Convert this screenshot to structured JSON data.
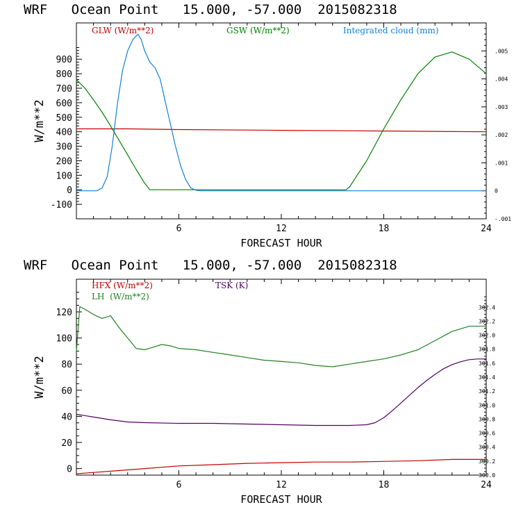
{
  "chart_data": [
    {
      "type": "line",
      "title": "WRF   Ocean Point   15.000, -57.000  2015082318",
      "xlabel": "FORECAST HOUR",
      "ylabel": "W/m**2",
      "xlim": [
        0,
        24
      ],
      "ylim": [
        -200,
        1150
      ],
      "xticks": [
        6,
        12,
        18,
        24
      ],
      "yticks": [
        -100,
        0,
        100,
        200,
        300,
        400,
        500,
        600,
        700,
        800,
        900
      ],
      "y2lim": [
        -0.001,
        0.006
      ],
      "y2ticks": [
        -0.001,
        0,
        0.001,
        0.002,
        0.003,
        0.004,
        0.005
      ],
      "y2ticklabels": [
        "-.001",
        "0",
        ".001",
        ".002",
        ".003",
        ".004",
        ".005"
      ],
      "series": [
        {
          "name": "GLW (W/m**2)",
          "color": "#c00000",
          "axis": "left",
          "x": [
            0,
            3,
            6,
            12,
            18,
            24
          ],
          "y": [
            420,
            420,
            415,
            410,
            405,
            400
          ]
        },
        {
          "name": "GSW (W/m**2)",
          "color": "#008000",
          "axis": "left",
          "x": [
            0,
            0.5,
            1,
            1.5,
            2,
            2.5,
            3,
            3.5,
            4,
            4.3,
            15.8,
            16,
            17,
            18,
            19,
            20,
            21,
            22,
            23,
            24
          ],
          "y": [
            760,
            700,
            620,
            535,
            440,
            340,
            240,
            140,
            45,
            0,
            0,
            20,
            200,
            420,
            620,
            800,
            915,
            950,
            900,
            800
          ]
        },
        {
          "name": "Integrated cloud (mm)",
          "color": "#1080d8",
          "axis": "right",
          "x": [
            0,
            1.2,
            1.5,
            1.8,
            2.1,
            2.4,
            2.7,
            3.0,
            3.3,
            3.6,
            3.8,
            4.0,
            4.3,
            4.6,
            4.9,
            5.2,
            5.5,
            5.8,
            6.1,
            6.4,
            6.7,
            7.0,
            7.3,
            24
          ],
          "y": [
            0,
            0,
            0.0001,
            0.0005,
            0.0016,
            0.0031,
            0.0043,
            0.005,
            0.0054,
            0.0056,
            0.0054,
            0.005,
            0.0046,
            0.0044,
            0.004,
            0.0032,
            0.0024,
            0.0016,
            0.0009,
            0.0004,
            0.0001,
            2e-05,
            0,
            0
          ]
        }
      ]
    },
    {
      "type": "line",
      "title": "WRF   Ocean Point   15.000, -57.000  2015082318",
      "xlabel": "FORECAST HOUR",
      "ylabel": "W/m**2",
      "xlim": [
        0,
        24
      ],
      "ylim": [
        -5,
        145
      ],
      "xticks": [
        6,
        12,
        18,
        24
      ],
      "yticks": [
        0,
        20,
        40,
        60,
        80,
        100,
        120
      ],
      "y2lim": [
        300.0,
        302.8
      ],
      "y2ticks": [
        300.0,
        300.2,
        300.4,
        300.6,
        300.8,
        301.0,
        301.2,
        301.4,
        301.6,
        301.8,
        302.0,
        302.2,
        302.4
      ],
      "y2ticklabels": [
        "300.0",
        "300.2",
        "300.4",
        "300.6",
        "300.8",
        "301.0",
        "301.2",
        "301.4",
        "301.6",
        "301.8",
        "302.0",
        "302.2",
        "302.4"
      ],
      "series": [
        {
          "name": "HFX (W/m**2)",
          "color": "#c00000",
          "axis": "left",
          "x": [
            0,
            1,
            2,
            3,
            4,
            5,
            6,
            8,
            10,
            12,
            14,
            16,
            18,
            20,
            22,
            24
          ],
          "y": [
            -4,
            -3,
            -2,
            -1,
            0,
            1,
            2,
            3,
            4,
            4.5,
            5,
            5,
            5.5,
            6,
            7,
            7
          ]
        },
        {
          "name": "LH  (W/m**2)",
          "color": "#208020",
          "axis": "left",
          "x": [
            0,
            0.2,
            0.5,
            1,
            1.5,
            2,
            2.5,
            3,
            3.5,
            4,
            4.5,
            5,
            5.5,
            6,
            7,
            8,
            9,
            10,
            11,
            12,
            13,
            14,
            15,
            16,
            17,
            18,
            19,
            20,
            21,
            22,
            23,
            24
          ],
          "y": [
            90,
            124,
            122,
            118,
            115,
            117,
            108,
            100,
            92,
            91,
            93,
            95,
            94,
            92,
            91,
            89,
            87,
            85,
            83,
            82,
            81,
            79,
            78,
            80,
            82,
            84,
            87,
            91,
            98,
            105,
            109,
            109
          ]
        },
        {
          "name": "TSK (K)",
          "color": "#500060",
          "axis": "right",
          "x": [
            0,
            1,
            2,
            3,
            4,
            6,
            8,
            10,
            12,
            14,
            15,
            16,
            17,
            17.5,
            18,
            18.5,
            19,
            19.5,
            20,
            20.5,
            21,
            21.5,
            22,
            22.5,
            23,
            23.5,
            24
          ],
          "y": [
            300.87,
            300.83,
            300.79,
            300.76,
            300.75,
            300.74,
            300.74,
            300.73,
            300.72,
            300.71,
            300.71,
            300.71,
            300.72,
            300.75,
            300.82,
            300.92,
            301.03,
            301.14,
            301.25,
            301.35,
            301.44,
            301.52,
            301.58,
            301.62,
            301.65,
            301.66,
            301.66
          ]
        }
      ]
    }
  ]
}
